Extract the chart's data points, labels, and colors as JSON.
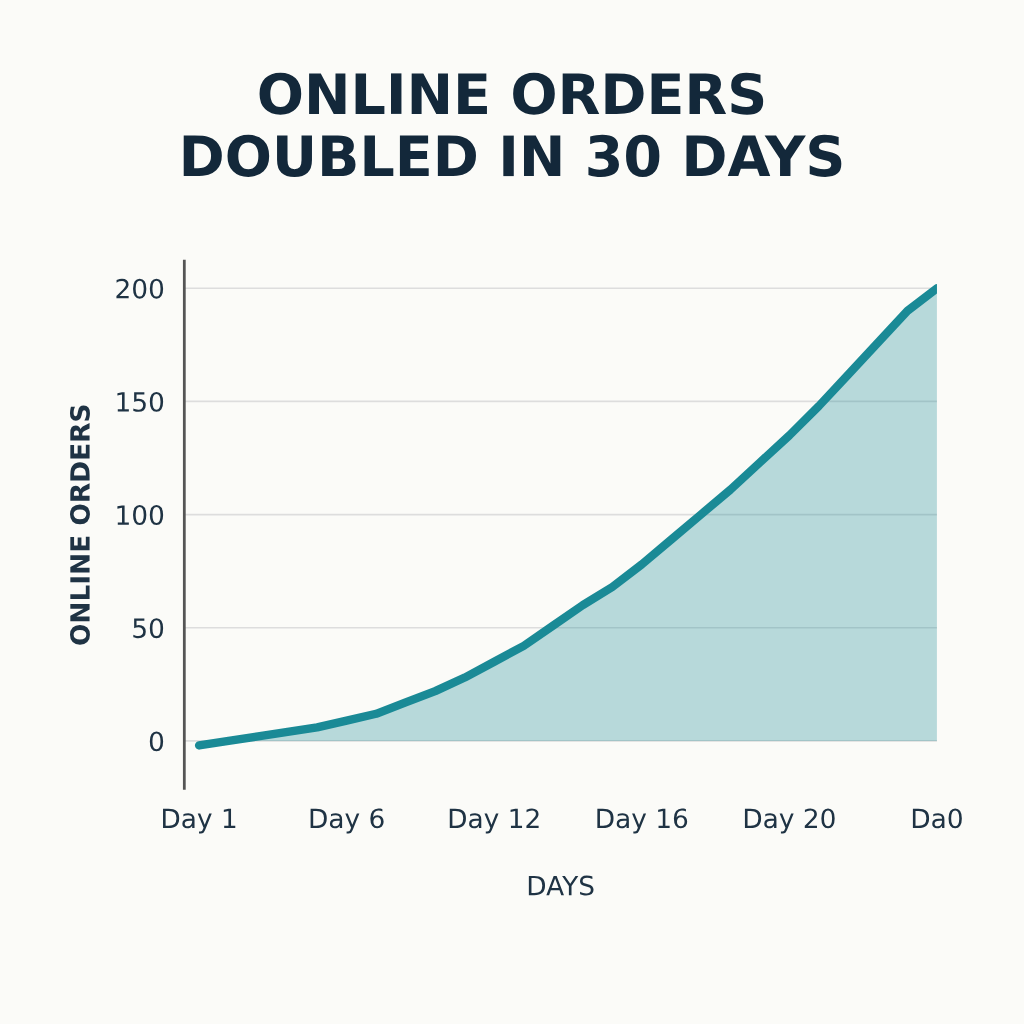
{
  "chart_data": {
    "type": "area",
    "title": "ONLINE ORDERS\nDOUBLED IN 30 DAYS",
    "xlabel": "DAYS",
    "ylabel": "ONLINE ORDERS",
    "categories": [
      "Day 1",
      null,
      null,
      null,
      null,
      "Day 6",
      null,
      null,
      null,
      null,
      "Day 12",
      null,
      null,
      null,
      null,
      "Day 16",
      null,
      null,
      null,
      null,
      "Day 20",
      null,
      null,
      null,
      null,
      "Da0"
    ],
    "series": [
      {
        "color": "#1a8a96",
        "values": [
          -2,
          0,
          2,
          4,
          6,
          9,
          12,
          17,
          22,
          28,
          35,
          42,
          51,
          60,
          68,
          78,
          89,
          100,
          111,
          123,
          135,
          148,
          162,
          176,
          190,
          200
        ]
      }
    ],
    "ylim": [
      -21,
      212
    ],
    "yticks": [
      0,
      50,
      100,
      150,
      200
    ],
    "grid": "y",
    "legend": false,
    "marker": "none",
    "line_style": "solid"
  }
}
